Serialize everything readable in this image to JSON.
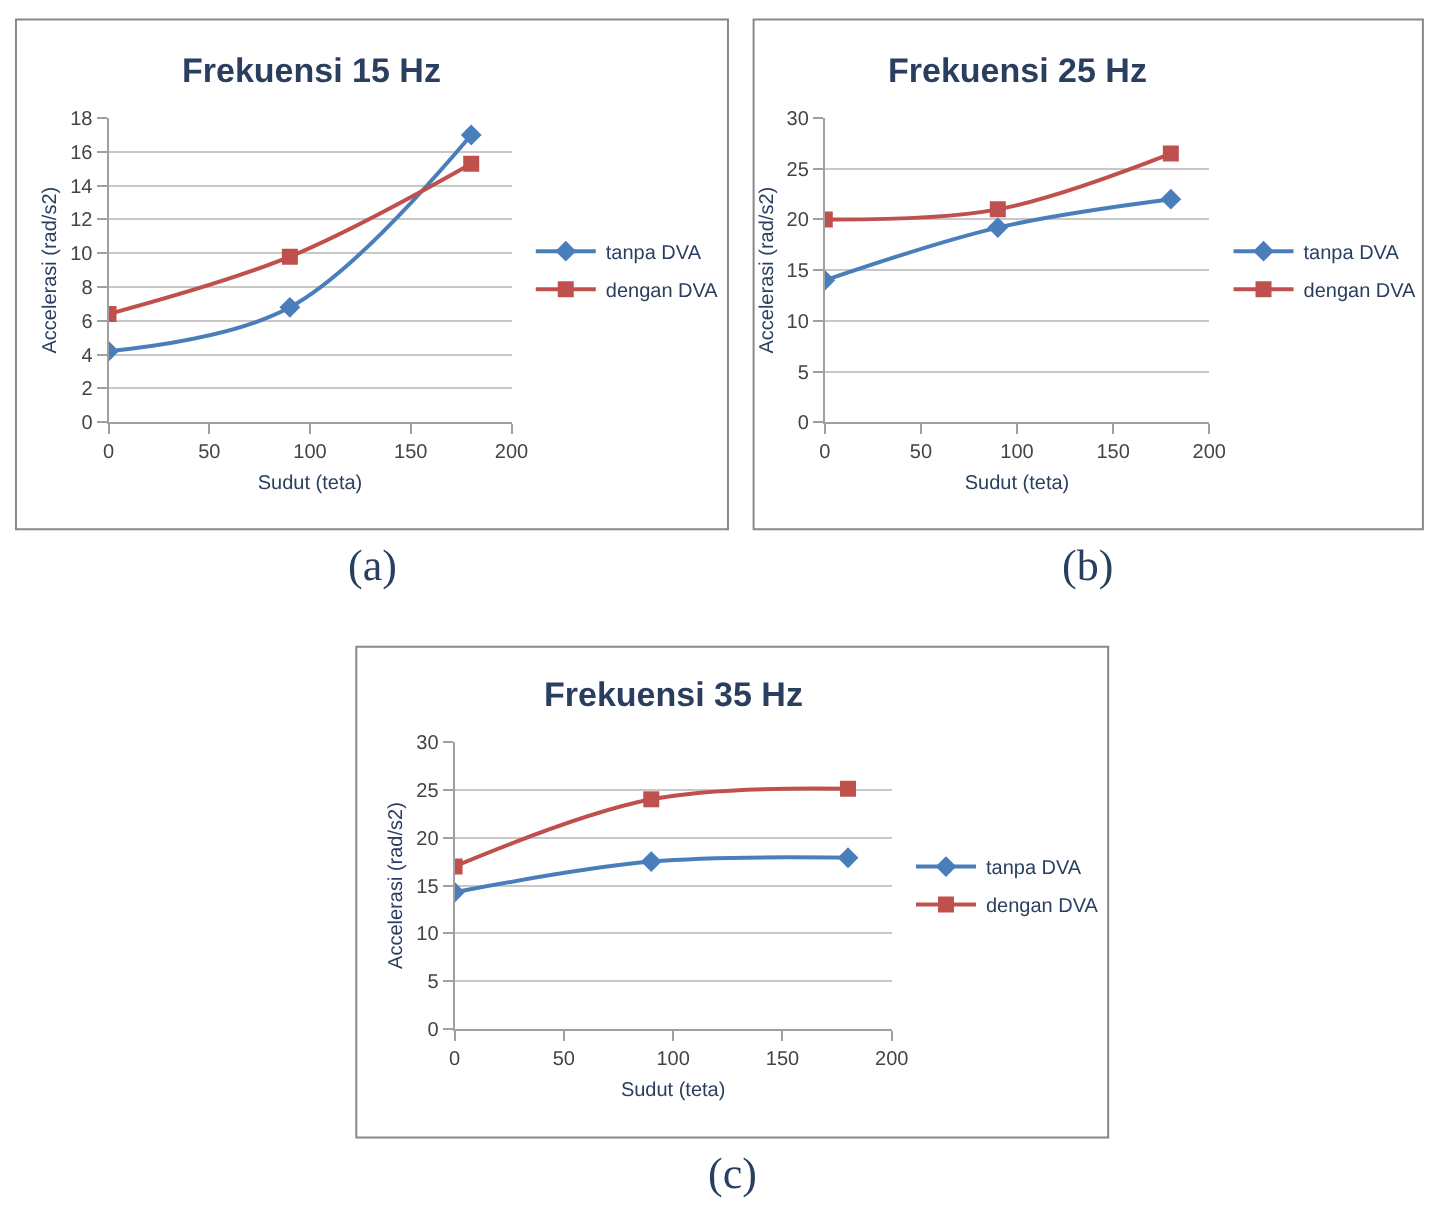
{
  "chart_data": [
    {
      "type": "line",
      "title": "Frekuensi 15 Hz",
      "xlabel": "Sudut (teta)",
      "ylabel": "Accelerasi (rad/s2)",
      "annotations": [
        "(a)"
      ],
      "x": [
        0,
        90,
        180
      ],
      "xlim": [
        0,
        200
      ],
      "xticks": [
        0,
        50,
        100,
        150,
        200
      ],
      "ylim": [
        0,
        18
      ],
      "yticks": [
        0,
        2,
        4,
        6,
        8,
        10,
        12,
        14,
        16,
        18
      ],
      "grid": "y",
      "legend": "right",
      "series": [
        {
          "name": "tanpa DVA",
          "color": "#4a7ebb",
          "marker": "diamond",
          "values": [
            4.2,
            6.8,
            17.0
          ]
        },
        {
          "name": "dengan DVA",
          "color": "#c0504d",
          "marker": "square",
          "values": [
            6.4,
            9.8,
            15.3
          ]
        }
      ]
    },
    {
      "type": "line",
      "title": "Frekuensi 25 Hz",
      "xlabel": "Sudut (teta)",
      "ylabel": "Accelerasi (rad/s2)",
      "annotations": [
        "(b)"
      ],
      "x": [
        0,
        90,
        180
      ],
      "xlim": [
        0,
        200
      ],
      "xticks": [
        0,
        50,
        100,
        150,
        200
      ],
      "ylim": [
        0,
        30
      ],
      "yticks": [
        0,
        5,
        10,
        15,
        20,
        25,
        30
      ],
      "grid": "y",
      "legend": "right",
      "series": [
        {
          "name": "tanpa DVA",
          "color": "#4a7ebb",
          "marker": "diamond",
          "values": [
            14.0,
            19.2,
            22.0
          ]
        },
        {
          "name": "dengan DVA",
          "color": "#c0504d",
          "marker": "square",
          "values": [
            20.0,
            21.0,
            26.5
          ]
        }
      ]
    },
    {
      "type": "line",
      "title": "Frekuensi 35 Hz",
      "xlabel": "Sudut (teta)",
      "ylabel": "Accelerasi (rad/s2)",
      "annotations": [
        "(c)"
      ],
      "x": [
        0,
        90,
        180
      ],
      "xlim": [
        0,
        200
      ],
      "xticks": [
        0,
        50,
        100,
        150,
        200
      ],
      "ylim": [
        0,
        30
      ],
      "yticks": [
        0,
        5,
        10,
        15,
        20,
        25,
        30
      ],
      "grid": "y",
      "legend": "right",
      "series": [
        {
          "name": "tanpa DVA",
          "color": "#4a7ebb",
          "marker": "diamond",
          "values": [
            14.3,
            17.5,
            17.9
          ]
        },
        {
          "name": "dengan DVA",
          "color": "#c0504d",
          "marker": "square",
          "values": [
            17.0,
            24.0,
            25.1
          ]
        }
      ]
    }
  ]
}
